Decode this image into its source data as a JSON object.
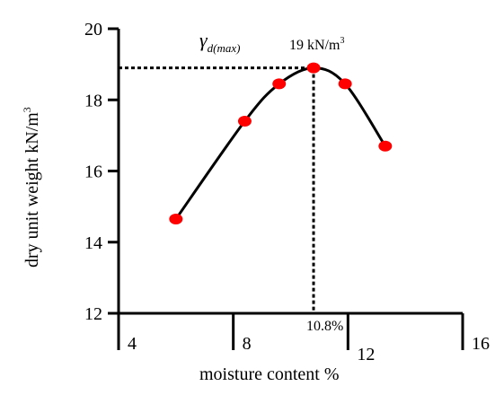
{
  "chart_data": {
    "type": "scatter",
    "xlabel": "moisture content %",
    "ylabel": "dry unit weight  kN/m",
    "ylabel_sup": "3",
    "xlim": [
      4,
      16
    ],
    "ylim": [
      12,
      20
    ],
    "x_ticks": [
      4,
      8,
      12,
      16
    ],
    "y_ticks": [
      12,
      14,
      16,
      18,
      20
    ],
    "x_tick_labels": [
      "4",
      "8",
      "12",
      "16"
    ],
    "y_tick_labels": [
      "12",
      "14",
      "16",
      "18",
      "20"
    ],
    "grid": false,
    "series": [
      {
        "x": [
          6.0,
          8.4,
          9.6,
          10.8,
          11.9,
          13.3
        ],
        "y": [
          14.65,
          17.4,
          18.45,
          18.9,
          18.45,
          16.7
        ]
      }
    ],
    "point_color": "#ff0000",
    "curve_color": "#000000",
    "guide_lines": {
      "x": 10.8,
      "y": 18.9
    },
    "annotations": {
      "gamma_symbol": "γ",
      "gamma_subscript": "d(max)",
      "peak_label": "19 kN/m",
      "peak_label_sup": "3",
      "optimum_label": "10.8%"
    }
  }
}
